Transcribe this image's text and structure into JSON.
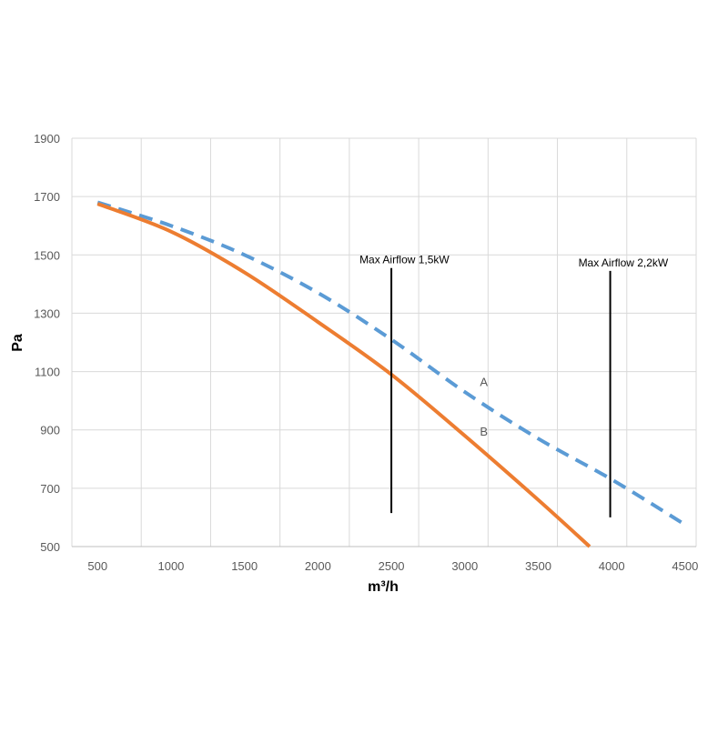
{
  "chart_data": {
    "type": "line",
    "title": "",
    "xlabel": "m³/h",
    "ylabel": "Pa",
    "xlim": [
      325,
      4575
    ],
    "ylim": [
      500,
      1900
    ],
    "xticks": [
      500,
      1000,
      1500,
      2000,
      2500,
      3000,
      3500,
      4000,
      4500
    ],
    "yticks": [
      500,
      700,
      900,
      1100,
      1300,
      1500,
      1700,
      1900
    ],
    "x_tick_labels": [
      "500",
      "1000",
      "1500",
      "2000",
      "2500",
      "3000",
      "3500",
      "4000",
      "4500"
    ],
    "y_tick_labels": [
      "500",
      "700",
      "900",
      "1100",
      "1300",
      "1500",
      "1700",
      "1900"
    ],
    "grid": true,
    "legend": "none",
    "series": [
      {
        "name": "A",
        "color": "#5b9bd5",
        "style": "dashed",
        "x": [
          500,
          1000,
          1500,
          2000,
          2500,
          3000,
          3500,
          4000,
          4500
        ],
        "y": [
          1680,
          1600,
          1500,
          1370,
          1210,
          1030,
          870,
          730,
          575
        ]
      },
      {
        "name": "B",
        "color": "#ed7d31",
        "style": "solid",
        "x": [
          500,
          1000,
          1500,
          2000,
          2500,
          3000,
          3500,
          3850
        ],
        "y": [
          1675,
          1580,
          1440,
          1270,
          1090,
          880,
          660,
          500
        ]
      }
    ],
    "series_labels": [
      {
        "text": "A",
        "x": 3130,
        "y": 1050
      },
      {
        "text": "B",
        "x": 3130,
        "y": 880
      }
    ],
    "annotations": [
      {
        "text": "Max Airflow 1,5kW",
        "x": 2500,
        "y_top": 1455,
        "y_bottom": 615
      },
      {
        "text": "Max Airflow 2,2kW",
        "x": 3990,
        "y_top": 1445,
        "y_bottom": 600
      }
    ]
  }
}
